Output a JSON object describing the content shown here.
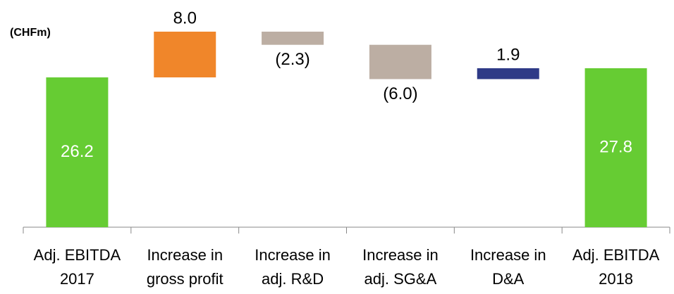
{
  "chart_data": {
    "type": "waterfall",
    "unit_label": "(CHFm)",
    "categories": [
      [
        "Adj. EBITDA",
        "2017"
      ],
      [
        "Increase in",
        "gross profit"
      ],
      [
        "Increase in",
        "adj. R&D"
      ],
      [
        "Increase in",
        "adj. SG&A"
      ],
      [
        "Increase in",
        "D&A"
      ],
      [
        "Adj. EBITDA",
        "2018"
      ]
    ],
    "values": [
      26.2,
      8.0,
      -2.3,
      -6.0,
      1.9,
      27.8
    ],
    "value_labels": [
      "26.2",
      "8.0",
      "(2.3)",
      "(6.0)",
      "1.9",
      "27.8"
    ],
    "measure": [
      "absolute",
      "relative",
      "relative",
      "relative",
      "relative",
      "total"
    ],
    "colors": [
      "#66cc33",
      "#f0862a",
      "#bcaea3",
      "#bcaea3",
      "#2e3a87",
      "#66cc33"
    ],
    "ylim": [
      0,
      35
    ]
  }
}
